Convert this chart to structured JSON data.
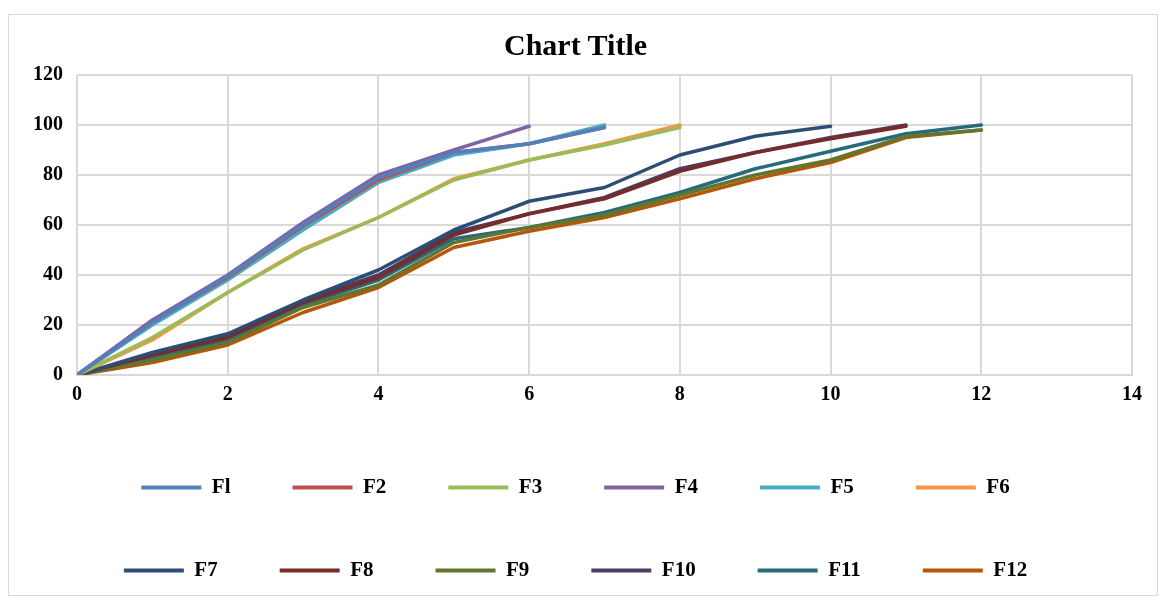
{
  "chart_data": {
    "type": "line",
    "title": "Chart Title",
    "xlim": [
      0,
      14
    ],
    "xticks": [
      0,
      2,
      4,
      6,
      8,
      10,
      12,
      14
    ],
    "ylim": [
      0,
      120
    ],
    "yticks": [
      0,
      20,
      40,
      60,
      80,
      100,
      120
    ],
    "grid": true,
    "legend": "bottom",
    "marker": "none",
    "line_style": "solid",
    "series": [
      {
        "name": "Fl",
        "color": "#4f81bd",
        "x": [
          0,
          1,
          2,
          3,
          4,
          5,
          6,
          7
        ],
        "values": [
          0,
          21,
          39.5,
          60,
          79,
          89,
          92.5,
          99
        ]
      },
      {
        "name": "F2",
        "color": "#c0504d",
        "x": [
          0,
          1,
          2,
          3,
          4,
          5,
          6,
          7
        ],
        "values": [
          0,
          21,
          39,
          59.5,
          78,
          89,
          92.5,
          99
        ]
      },
      {
        "name": "F3",
        "color": "#9bbb59",
        "x": [
          0,
          1,
          2,
          3,
          4,
          5,
          6,
          7,
          8
        ],
        "values": [
          0,
          15,
          33,
          50,
          63,
          78,
          86,
          92,
          99
        ]
      },
      {
        "name": "F4",
        "color": "#8064a2",
        "x": [
          0,
          1,
          2,
          3,
          4,
          5,
          6
        ],
        "values": [
          0,
          22,
          40,
          61,
          80,
          90,
          99.5
        ]
      },
      {
        "name": "F5",
        "color": "#4bacc6",
        "x": [
          0,
          1,
          2,
          3,
          4,
          5,
          6,
          7
        ],
        "values": [
          0,
          20,
          38,
          58,
          77,
          88,
          92.5,
          100
        ]
      },
      {
        "name": "F6",
        "color": "#f79646",
        "x": [
          0,
          1,
          2,
          3,
          4,
          5,
          6,
          7,
          8
        ],
        "values": [
          0,
          14,
          33,
          50.5,
          63,
          78.5,
          86,
          92.5,
          100
        ]
      },
      {
        "name": "F7",
        "color": "#2c4d75",
        "x": [
          0,
          1,
          2,
          3,
          4,
          5,
          6,
          7,
          8,
          9,
          10
        ],
        "values": [
          0,
          9,
          16.5,
          30,
          42,
          58,
          69.5,
          75,
          88,
          95.5,
          99.5
        ]
      },
      {
        "name": "F8",
        "color": "#772c2a",
        "x": [
          0,
          1,
          2,
          3,
          4,
          5,
          6,
          7,
          8,
          9,
          10,
          11
        ],
        "values": [
          0,
          8,
          15,
          29,
          39,
          56,
          64.5,
          70.5,
          81.5,
          89,
          94.5,
          99.5
        ]
      },
      {
        "name": "F9",
        "color": "#5f7530",
        "x": [
          0,
          1,
          2,
          3,
          4,
          5,
          6,
          7,
          8,
          9,
          10,
          11,
          12
        ],
        "values": [
          0,
          6,
          13,
          27,
          36,
          53,
          59,
          64,
          72,
          80,
          86,
          95.5,
          98
        ]
      },
      {
        "name": "F10",
        "color": "#4d3b62",
        "x": [
          0,
          1,
          2,
          3,
          4,
          5,
          6,
          7,
          8,
          9,
          10,
          11
        ],
        "values": [
          0,
          8,
          15.5,
          29.5,
          40,
          57,
          64.5,
          71,
          82.5,
          89,
          95,
          100
        ]
      },
      {
        "name": "F11",
        "color": "#276a7c",
        "x": [
          0,
          1,
          2,
          3,
          4,
          5,
          6,
          7,
          8,
          9,
          10,
          11,
          12
        ],
        "values": [
          0,
          7,
          14,
          28,
          38,
          54.5,
          59,
          65,
          73,
          82.5,
          89.5,
          96.5,
          100
        ]
      },
      {
        "name": "F12",
        "color": "#b65708",
        "x": [
          0,
          1,
          2,
          3,
          4,
          5,
          6,
          7,
          8,
          9,
          10,
          11,
          12
        ],
        "values": [
          0,
          5,
          12,
          25,
          35,
          51,
          57.5,
          63,
          70.5,
          78.5,
          85,
          95,
          98
        ]
      }
    ]
  }
}
